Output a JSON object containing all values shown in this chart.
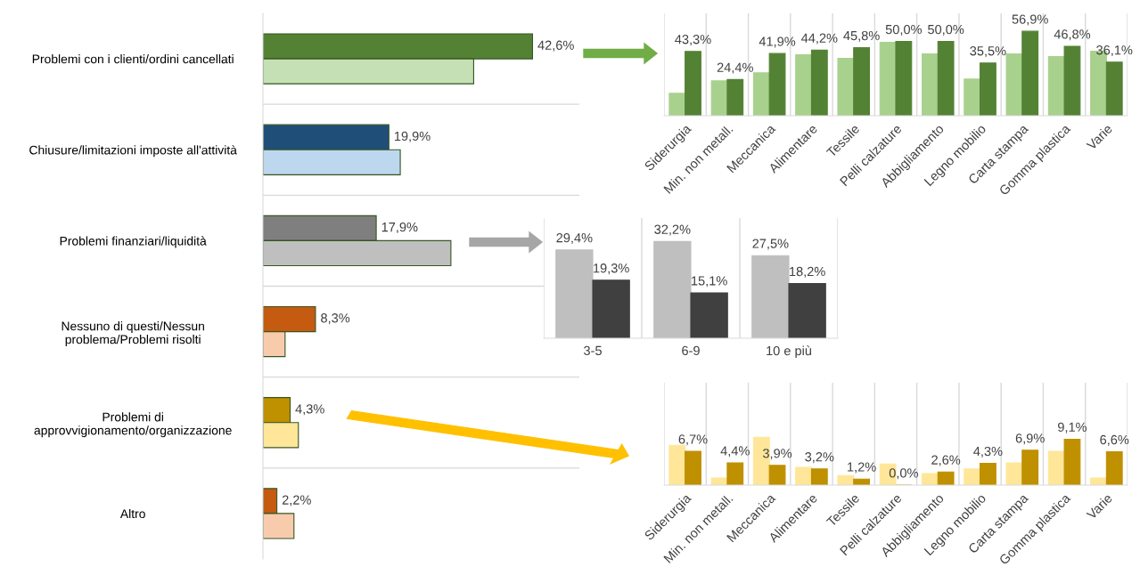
{
  "chart_data": [
    {
      "type": "bar",
      "orientation": "horizontal",
      "categories": [
        "Problemi con i clienti/ordini cancellati",
        "Chiusure/limitazioni imposte all'attività",
        "Problemi finanziari/liquidità",
        "Nessuno di questi/Nessun\nproblema/Problemi risolti",
        "Problemi di\napprovvigionamento/organizzazione",
        "Altro"
      ],
      "xlim": [
        0,
        50
      ],
      "tick_labels": "y",
      "grid": true,
      "series": [
        {
          "colors": [
            "#548235",
            "#1f4e79",
            "#7f7f7f",
            "#c55a11",
            "#bf9000",
            "#c55a11"
          ],
          "values": [
            42.6,
            19.9,
            17.9,
            8.3,
            4.3,
            2.2
          ],
          "value_labels": [
            "42,6%",
            "19,9%",
            "17,9%",
            "8,3%",
            "4,3%",
            "2,2%"
          ]
        },
        {
          "colors": [
            "#c5e0b4",
            "#bdd7ee",
            "#bfbfbf",
            "#f8cbad",
            "#ffe699",
            "#f8cbad"
          ],
          "values": [
            33.3,
            21.7,
            29.7,
            3.5,
            5.6,
            4.9
          ]
        }
      ]
    },
    {
      "type": "bar",
      "categories": [
        "Siderurgia",
        "Min. non metall.",
        "Meccanica",
        "Alimentare",
        "Tessile",
        "Pelli calzature",
        "Abbigliamento",
        "Legno mobilio",
        "Carta stampa",
        "Gomma plastica",
        "Varie"
      ],
      "ylim": [
        0,
        69
      ],
      "tick_labels": "x",
      "grid": true,
      "series": [
        {
          "color": "#a9d18e",
          "values": [
            15.1,
            23.5,
            28.9,
            41.0,
            38.6,
            49.4,
            41.6,
            24.7,
            41.6,
            39.8,
            43.4
          ]
        },
        {
          "color": "#548235",
          "values": [
            43.3,
            24.4,
            41.9,
            44.2,
            45.8,
            50.0,
            50.0,
            35.5,
            56.9,
            46.8,
            36.1
          ],
          "value_labels": [
            "43,3%",
            "24,4%",
            "41,9%",
            "44,2%",
            "45,8%",
            "50,0%",
            "50,0%",
            "35,5%",
            "56,9%",
            "46,8%",
            "36,1%"
          ]
        }
      ]
    },
    {
      "type": "bar",
      "categories": [
        "3-5",
        "6-9",
        "10 e più"
      ],
      "ylim": [
        0,
        40
      ],
      "tick_labels": "x",
      "grid": true,
      "series": [
        {
          "color": "#bfbfbf",
          "values": [
            29.4,
            32.2,
            27.5
          ],
          "value_labels": [
            "29,4%",
            "32,2%",
            "27,5%"
          ]
        },
        {
          "color": "#404040",
          "values": [
            19.3,
            15.1,
            18.2
          ],
          "value_labels": [
            "19,3%",
            "15,1%",
            "18,2%"
          ]
        }
      ]
    },
    {
      "type": "bar",
      "categories": [
        "Siderurgia",
        "Min. non metall.",
        "Meccanica",
        "Alimentare",
        "Tessile",
        "Pelli calzature",
        "Abbigliamento",
        "Legno mobilio",
        "Carta stampa",
        "Gomma plastica",
        "Varie"
      ],
      "ylim": [
        0,
        20.3
      ],
      "tick_labels": "x",
      "grid": true,
      "series": [
        {
          "color": "#ffe699",
          "values": [
            7.9,
            1.4,
            9.5,
            3.5,
            1.9,
            4.2,
            2.3,
            3.2,
            4.4,
            6.7,
            1.4
          ]
        },
        {
          "color": "#bf9000",
          "values": [
            6.7,
            4.4,
            3.9,
            3.2,
            1.2,
            0.0,
            2.6,
            4.3,
            6.9,
            9.1,
            6.6
          ],
          "value_labels": [
            "6,7%",
            "4,4%",
            "3,9%",
            "3,2%",
            "1,2%",
            "0,0%",
            "2,6%",
            "4,3%",
            "6,9%",
            "9,1%",
            "6,6%"
          ]
        }
      ]
    }
  ]
}
